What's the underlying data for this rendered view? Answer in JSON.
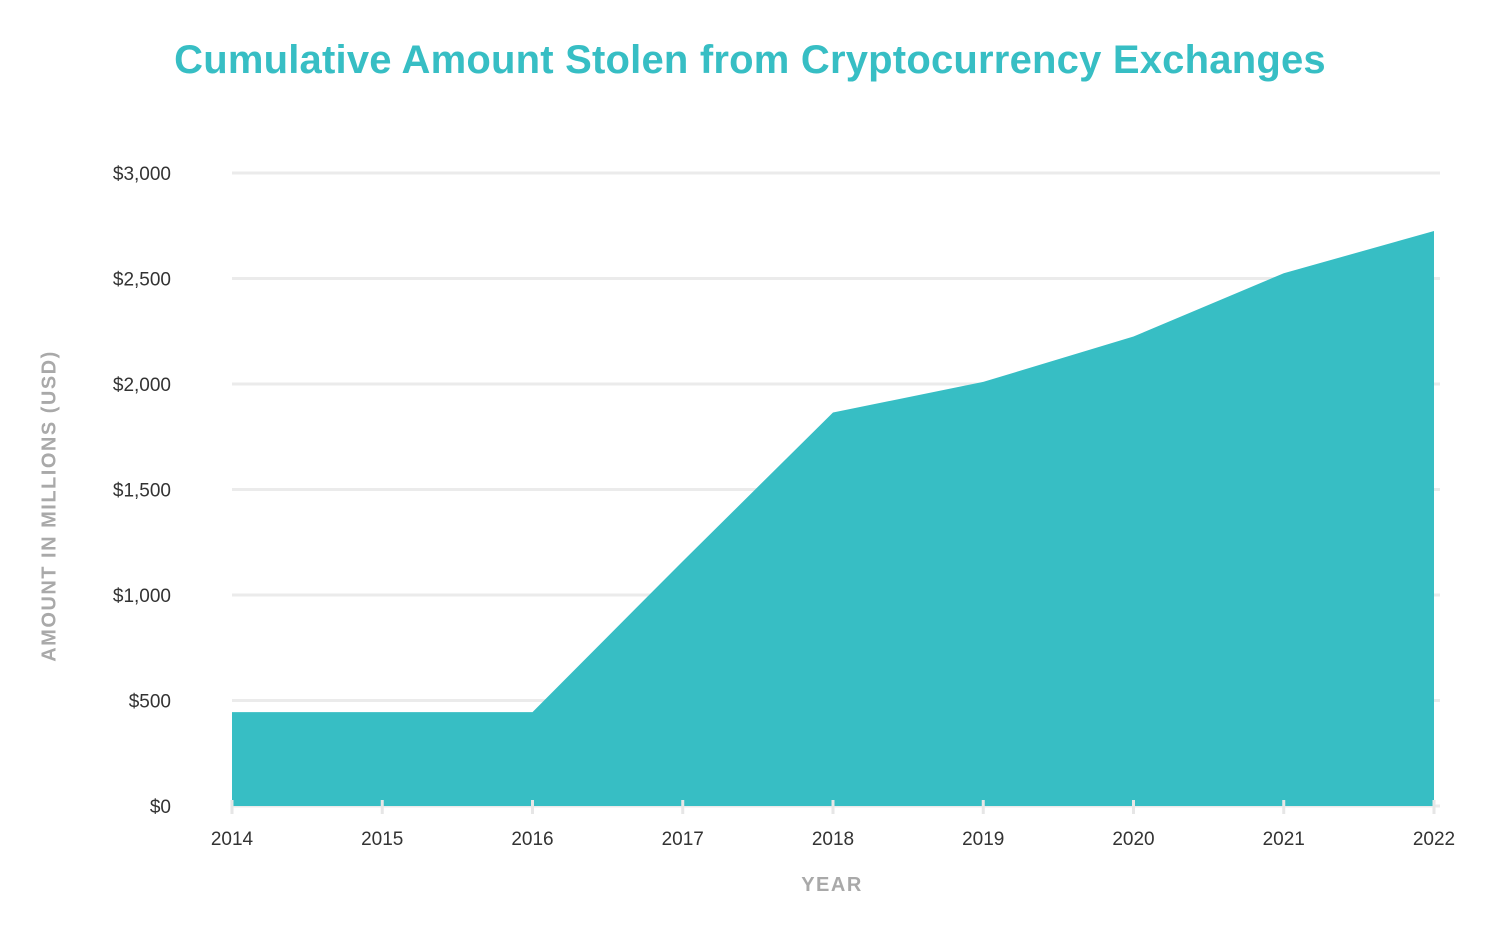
{
  "title": "Cumulative Amount Stolen from Cryptocurrency Exchanges",
  "colors": {
    "area": "#37bec4",
    "title": "#37bec4",
    "grid": "#ebebeb",
    "axis_label": "#a9a9a9",
    "tick_label": "#333333"
  },
  "chart_data": {
    "type": "area",
    "title": "Cumulative Amount Stolen from Cryptocurrency Exchanges",
    "xlabel": "YEAR",
    "ylabel": "AMOUNT IN MILLIONS (USD)",
    "categories": [
      "2014",
      "2015",
      "2016",
      "2017",
      "2018",
      "2019",
      "2020",
      "2021",
      "2022"
    ],
    "values": [
      445,
      445,
      445,
      1160,
      1865,
      2010,
      2225,
      2525,
      2725
    ],
    "ylim": [
      0,
      3000
    ],
    "yticks": [
      0,
      500,
      1000,
      1500,
      2000,
      2500,
      3000
    ],
    "ytick_labels": [
      "$0",
      "$500",
      "$1,000",
      "$1,500",
      "$2,000",
      "$2,500",
      "$3,000"
    ],
    "grid": true,
    "legend": null
  }
}
